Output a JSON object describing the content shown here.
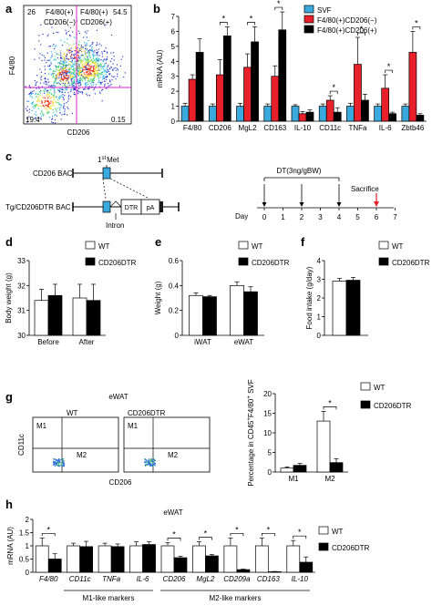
{
  "panels": {
    "a": {
      "label": "a",
      "xlabel": "CD206",
      "ylabel": "F4/80",
      "quadrants": {
        "ul_pct": "26",
        "ul_name": "F4/80(+)",
        "ul_name2": "CD206(−)",
        "ur_pct": "54.5",
        "ur_name": "F4/80(+)",
        "ur_name2": "CD206(+)",
        "ll_pct": "19.4",
        "lr_pct": "0.15"
      }
    },
    "b": {
      "label": "b"
    },
    "c": {
      "label": "c",
      "first_met": "1st Met",
      "first_met_num": "1",
      "first_met_sup": "st",
      "first_met_word": "Met",
      "cd206_bac": "CD206 BAC",
      "tg_bac": "Tg/CD206DTR BAC",
      "intron": "Intron",
      "dtr": "DTR",
      "pa": "pA",
      "dt_label": "DT(3ng/gBW)",
      "sacrifice": "Sacrifice",
      "day_label": "Day",
      "days": [
        "0",
        "1",
        "2",
        "3",
        "4",
        "5",
        "6",
        "7"
      ],
      "dt_days": [
        0,
        2,
        4
      ],
      "sacrifice_day": 6
    },
    "d": {
      "label": "d"
    },
    "e": {
      "label": "e"
    },
    "f": {
      "label": "f"
    },
    "g": {
      "label": "g",
      "title": "eWAT",
      "left_name": "WT",
      "right_name": "CD206DTR",
      "xlabel": "CD206",
      "ylabel": "CD11c",
      "m1": "M1",
      "m2": "M2"
    },
    "h": {
      "label": "h",
      "title": "eWAT",
      "group1": "M1-like markers",
      "group2": "M2-like markers"
    }
  },
  "colors": {
    "svf": "#3aa9dd",
    "neg": "#e8202a",
    "pos": "#000000",
    "wt": "#ffffff",
    "dtr": "#000000"
  },
  "chart_data": [
    {
      "id": "a",
      "type": "scatter",
      "xlabel": "CD206",
      "ylabel": "F4/80"
    },
    {
      "id": "b",
      "type": "bar",
      "ylabel": "mRNA (AU)",
      "ylim": [
        0,
        7
      ],
      "yticks": [
        "0",
        "1",
        "2",
        "3",
        "4",
        "5",
        "6",
        "7"
      ],
      "categories": [
        "F4/80",
        "CD206",
        "MgL2",
        "CD163",
        "IL-10",
        "CD11c",
        "TNFa",
        "IL-6",
        "Zbtb46"
      ],
      "series": [
        {
          "name": "SVF",
          "color": "#3aa9dd",
          "values": [
            1,
            1,
            1,
            1,
            1,
            1,
            1,
            1,
            1
          ],
          "err": [
            0.2,
            0.15,
            0.2,
            0.15,
            0.1,
            0.15,
            0.2,
            0.15,
            0.15
          ]
        },
        {
          "name": "F4/80(+)CD206(−)",
          "color": "#e8202a",
          "values": [
            2.8,
            3.1,
            3.6,
            3.0,
            0.5,
            1.4,
            3.8,
            2.2,
            4.6
          ],
          "err": [
            0.3,
            1.0,
            0.9,
            0.7,
            0.15,
            0.3,
            1.8,
            0.9,
            1.4
          ]
        },
        {
          "name": "F4/80(+)CD206(+)",
          "color": "#000000",
          "values": [
            4.6,
            5.7,
            5.3,
            6.1,
            0.6,
            0.6,
            1.4,
            0.5,
            0.4
          ],
          "err": [
            0.9,
            0.6,
            1.0,
            1.2,
            0.15,
            0.3,
            0.4,
            0.1,
            0.1
          ]
        }
      ],
      "significance": [
        {
          "cat": 1,
          "from": 1,
          "to": 2,
          "text": "*"
        },
        {
          "cat": 2,
          "from": 1,
          "to": 2,
          "text": "*"
        },
        {
          "cat": 3,
          "from": 1,
          "to": 2,
          "text": "*"
        },
        {
          "cat": 5,
          "from": 1,
          "to": 2,
          "text": "*"
        },
        {
          "cat": 6,
          "from": 1,
          "to": 2,
          "text": "*"
        },
        {
          "cat": 7,
          "from": 1,
          "to": 2,
          "text": "*"
        },
        {
          "cat": 8,
          "from": 1,
          "to": 2,
          "text": "*"
        }
      ]
    },
    {
      "id": "d",
      "type": "bar",
      "ylabel": "Body weight (g)",
      "ylim": [
        30,
        33
      ],
      "yticks": [
        "30",
        "31",
        "32",
        "33"
      ],
      "categories": [
        "Before",
        "After"
      ],
      "series": [
        {
          "name": "WT",
          "color": "#ffffff",
          "values": [
            31.4,
            31.5
          ],
          "err": [
            0.45,
            0.55
          ]
        },
        {
          "name": "CD206DTR",
          "color": "#000000",
          "values": [
            31.6,
            31.4
          ],
          "err": [
            0.45,
            0.65
          ]
        }
      ]
    },
    {
      "id": "e",
      "type": "bar",
      "ylabel": "Weight (g)",
      "ylim": [
        0,
        0.6
      ],
      "yticks": [
        "0",
        "0.2",
        "0.4",
        "0.6"
      ],
      "categories": [
        "iWAT",
        "eWAT"
      ],
      "series": [
        {
          "name": "WT",
          "color": "#ffffff",
          "values": [
            0.32,
            0.4
          ],
          "err": [
            0.02,
            0.03
          ]
        },
        {
          "name": "CD206DTR",
          "color": "#000000",
          "values": [
            0.31,
            0.35
          ],
          "err": [
            0.01,
            0.04
          ]
        }
      ]
    },
    {
      "id": "f",
      "type": "bar",
      "ylabel": "Food intake (g/day)",
      "ylim": [
        0,
        4
      ],
      "yticks": [
        "0",
        "1",
        "2",
        "3",
        "4"
      ],
      "categories": [
        ""
      ],
      "series": [
        {
          "name": "WT",
          "color": "#ffffff",
          "values": [
            2.9
          ],
          "err": [
            0.15
          ]
        },
        {
          "name": "CD206DTR",
          "color": "#000000",
          "values": [
            2.95
          ],
          "err": [
            0.15
          ]
        }
      ]
    },
    {
      "id": "g",
      "type": "bar",
      "ylabel": "Percentage in CD45+ F4/80+ SVF",
      "ylabel_parts": [
        "Percentage in CD45",
        "+",
        "F4/80",
        "+",
        " SVF"
      ],
      "ylim": [
        0,
        20
      ],
      "yticks": [
        "0",
        "5",
        "10",
        "15",
        "20"
      ],
      "categories": [
        "M1",
        "M2"
      ],
      "series": [
        {
          "name": "WT",
          "color": "#ffffff",
          "values": [
            1.0,
            13.0
          ],
          "err": [
            0.3,
            2.5
          ]
        },
        {
          "name": "CD206DTR",
          "color": "#000000",
          "values": [
            1.7,
            2.4
          ],
          "err": [
            0.5,
            1.0
          ]
        }
      ],
      "significance": [
        {
          "cat": 1,
          "from": 0,
          "to": 1,
          "text": "*"
        }
      ]
    },
    {
      "id": "h",
      "type": "bar",
      "ylabel": "mRNA (AU)",
      "ylim": [
        0,
        2
      ],
      "yticks": [
        "0",
        "0.5",
        "1",
        "1.5",
        "2"
      ],
      "categories": [
        "F4/80",
        "CD11c",
        "TNFa",
        "IL-6",
        "CD206",
        "MgL2",
        "CD209a",
        "CD163",
        "IL-10"
      ],
      "series": [
        {
          "name": "WT",
          "color": "#ffffff",
          "values": [
            1.0,
            1.0,
            1.0,
            1.0,
            1.0,
            1.0,
            1.0,
            1.0,
            1.0
          ],
          "err": [
            0.3,
            0.1,
            0.1,
            0.15,
            0.12,
            0.15,
            0.3,
            0.3,
            0.2
          ]
        },
        {
          "name": "CD206DTR",
          "color": "#000000",
          "values": [
            0.5,
            0.97,
            0.97,
            1.05,
            0.55,
            0.62,
            0.1,
            0.02,
            0.38
          ],
          "err": [
            0.2,
            0.2,
            0.1,
            0.1,
            0.05,
            0.05,
            0.02,
            0.01,
            0.2
          ]
        }
      ],
      "significance": [
        {
          "cat": 0,
          "from": 0,
          "to": 1,
          "text": "*"
        },
        {
          "cat": 4,
          "from": 0,
          "to": 1,
          "text": "*"
        },
        {
          "cat": 5,
          "from": 0,
          "to": 1,
          "text": "*"
        },
        {
          "cat": 6,
          "from": 0,
          "to": 1,
          "text": "*"
        },
        {
          "cat": 7,
          "from": 0,
          "to": 1,
          "text": "*"
        },
        {
          "cat": 8,
          "from": 0,
          "to": 1,
          "text": "*"
        }
      ]
    }
  ]
}
